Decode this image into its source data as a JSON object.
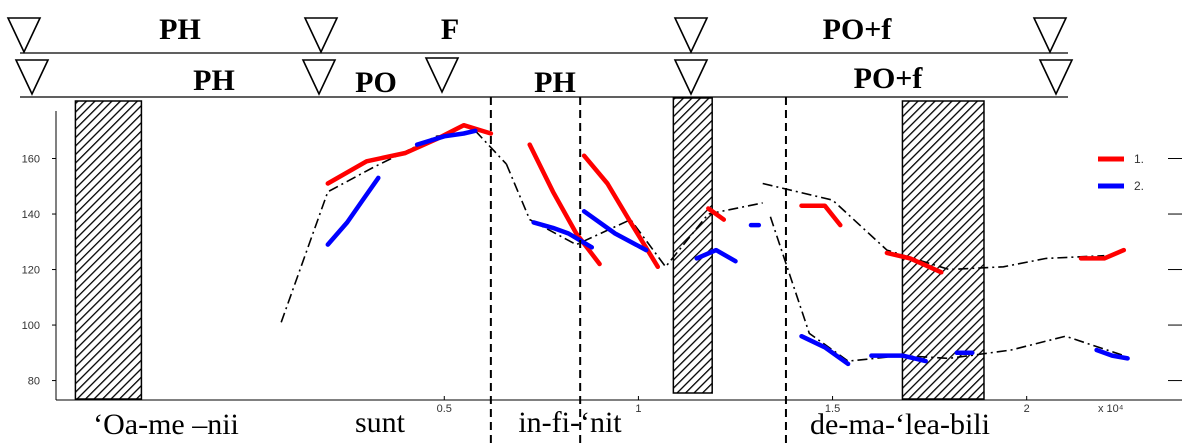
{
  "chart_data": {
    "type": "line",
    "title": "",
    "xlabel": "",
    "ylabel": "",
    "x_exponent_label": "x 10⁴",
    "xlim": [
      -0.5,
      2.4
    ],
    "ylim": [
      73,
      180
    ],
    "x_ticks": [
      0.5,
      1,
      1.5,
      2
    ],
    "x_tick_labels": [
      "0.5",
      "1",
      "1.5",
      "2"
    ],
    "y_ticks": [
      80,
      100,
      120,
      140,
      160
    ],
    "y_tick_labels": [
      "80",
      "100",
      "120",
      "140",
      "160"
    ],
    "legend": {
      "placement": "right",
      "entries": [
        {
          "label": "1.",
          "color": "#ff0000"
        },
        {
          "label": "2.",
          "color": "#0000ff"
        }
      ]
    },
    "series": [
      {
        "name": "1.",
        "color": "#ff0000",
        "segments": [
          [
            [
              0.2,
              151
            ],
            [
              0.3,
              159
            ],
            [
              0.4,
              162
            ],
            [
              0.48,
              167
            ],
            [
              0.55,
              172
            ],
            [
              0.62,
              169
            ]
          ],
          [
            [
              0.72,
              165
            ],
            [
              0.78,
              148
            ],
            [
              0.84,
              133
            ],
            [
              0.9,
              122
            ]
          ],
          [
            [
              0.86,
              161
            ],
            [
              0.92,
              151
            ],
            [
              0.98,
              137
            ],
            [
              1.05,
              121
            ]
          ],
          [
            [
              1.18,
              142
            ],
            [
              1.22,
              138
            ]
          ],
          [
            [
              1.42,
              143
            ],
            [
              1.48,
              143
            ],
            [
              1.52,
              136
            ]
          ],
          [
            [
              1.64,
              126
            ],
            [
              1.7,
              124
            ],
            [
              1.78,
              119
            ]
          ],
          [
            [
              2.14,
              124
            ],
            [
              2.2,
              124
            ],
            [
              2.25,
              127
            ]
          ]
        ]
      },
      {
        "name": "2.",
        "color": "#0000ff",
        "segments": [
          [
            [
              0.2,
              129
            ],
            [
              0.25,
              137
            ],
            [
              0.29,
              145
            ],
            [
              0.33,
              153
            ]
          ],
          [
            [
              0.43,
              165
            ],
            [
              0.5,
              168
            ],
            [
              0.55,
              169
            ],
            [
              0.58,
              170
            ]
          ],
          [
            [
              0.73,
              137
            ],
            [
              0.78,
              135
            ],
            [
              0.82,
              133
            ],
            [
              0.88,
              128
            ]
          ],
          [
            [
              0.86,
              141
            ],
            [
              0.94,
              133
            ],
            [
              1.02,
              127
            ]
          ],
          [
            [
              1.15,
              124
            ],
            [
              1.2,
              127
            ],
            [
              1.25,
              123
            ]
          ],
          [
            [
              1.29,
              136
            ],
            [
              1.31,
              136
            ]
          ],
          [
            [
              1.42,
              96
            ],
            [
              1.48,
              92
            ],
            [
              1.54,
              86
            ]
          ],
          [
            [
              1.6,
              89
            ],
            [
              1.68,
              89
            ],
            [
              1.74,
              87
            ]
          ],
          [
            [
              1.82,
              90
            ],
            [
              1.86,
              90
            ]
          ],
          [
            [
              2.18,
              91
            ],
            [
              2.22,
              89
            ],
            [
              2.26,
              88
            ]
          ]
        ]
      }
    ],
    "stylized_contours": [
      [
        [
          0.08,
          101
        ],
        [
          0.2,
          148
        ],
        [
          0.32,
          157
        ],
        [
          0.48,
          168
        ],
        [
          0.58,
          170
        ],
        [
          0.66,
          158
        ]
      ],
      [
        [
          0.66,
          158
        ],
        [
          0.72,
          138
        ],
        [
          0.84,
          129
        ],
        [
          0.98,
          138
        ],
        [
          1.07,
          121
        ],
        [
          1.18,
          140
        ],
        [
          1.32,
          144
        ]
      ],
      [
        [
          1.32,
          151
        ],
        [
          1.5,
          145
        ],
        [
          1.64,
          127
        ],
        [
          1.8,
          120
        ],
        [
          1.94,
          121
        ],
        [
          2.05,
          124
        ],
        [
          2.2,
          125
        ]
      ],
      [
        [
          1.34,
          139
        ],
        [
          1.44,
          97
        ],
        [
          1.54,
          87
        ],
        [
          1.68,
          89
        ],
        [
          1.8,
          88
        ],
        [
          1.96,
          91
        ],
        [
          2.1,
          96
        ],
        [
          2.25,
          89
        ]
      ]
    ],
    "shaded_bars": [
      [
        -0.45,
        -0.28
      ],
      [
        1.68,
        1.89
      ]
    ],
    "shaded_bars_tall": [
      [
        1.09,
        1.19
      ]
    ],
    "boundaries": [
      0.62,
      0.85,
      1.38
    ]
  },
  "prosody_tiers": {
    "tier1": [
      "PH",
      "F",
      "PO+f"
    ],
    "tier2": [
      "PH",
      "PO",
      "PH",
      "PO+f"
    ]
  },
  "syllables": [
    "‘Oa-me –nii",
    "sunt",
    "in-fi-‘nit",
    "de-ma-‘lea-bili"
  ]
}
